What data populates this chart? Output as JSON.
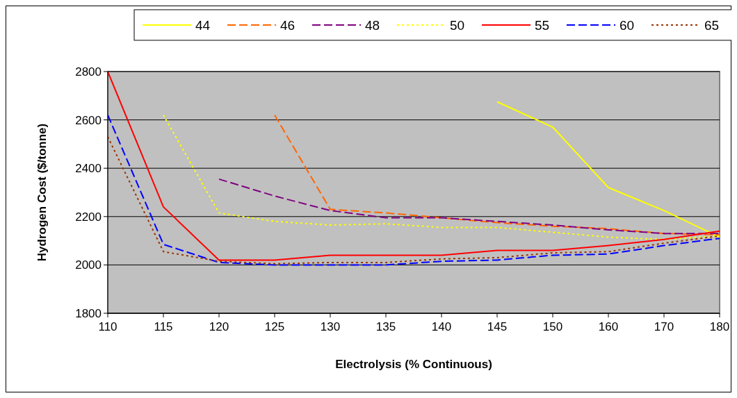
{
  "chart_data": {
    "type": "line",
    "xlabel": "Electrolysis (% Continuous)",
    "ylabel": "Hydrogen Cost ($/tonne)",
    "categories": [
      "110",
      "115",
      "120",
      "125",
      "130",
      "135",
      "140",
      "145",
      "150",
      "160",
      "170",
      "180"
    ],
    "ylim": [
      1800,
      2800
    ],
    "yticks": [
      1800,
      2000,
      2200,
      2400,
      2600,
      2800
    ],
    "grid": "y",
    "legend": "top",
    "marker": "none",
    "series": [
      {
        "name": "44",
        "color": "#ffff00",
        "line_style": "solid",
        "values": [
          null,
          null,
          null,
          null,
          null,
          null,
          null,
          2675,
          2570,
          2320,
          2225,
          2115
        ]
      },
      {
        "name": "46",
        "color": "#ff6600",
        "line_style": "dashed",
        "values": [
          null,
          null,
          null,
          2620,
          2230,
          2215,
          2195,
          2175,
          2160,
          2150,
          2130,
          2125
        ]
      },
      {
        "name": "48",
        "color": "#800080",
        "line_style": "dashed",
        "values": [
          null,
          null,
          2355,
          2285,
          2225,
          2195,
          2195,
          2180,
          2165,
          2145,
          2130,
          2130
        ]
      },
      {
        "name": "50",
        "color": "#ffff00",
        "line_style": "dotted",
        "values": [
          null,
          2620,
          2215,
          2180,
          2165,
          2170,
          2155,
          2155,
          2135,
          2115,
          2105,
          2120
        ]
      },
      {
        "name": "55",
        "color": "#ff0000",
        "line_style": "solid",
        "values": [
          2800,
          2240,
          2020,
          2020,
          2040,
          2040,
          2040,
          2060,
          2060,
          2080,
          2105,
          2140
        ]
      },
      {
        "name": "60",
        "color": "#0000ff",
        "line_style": "dashed",
        "values": [
          2620,
          2085,
          2010,
          2000,
          2000,
          2000,
          2015,
          2020,
          2040,
          2045,
          2080,
          2110
        ]
      },
      {
        "name": "65",
        "color": "#993300",
        "line_style": "dotted",
        "values": [
          2530,
          2055,
          2015,
          2005,
          2010,
          2010,
          2025,
          2030,
          2050,
          2055,
          2090,
          2120
        ]
      }
    ]
  }
}
